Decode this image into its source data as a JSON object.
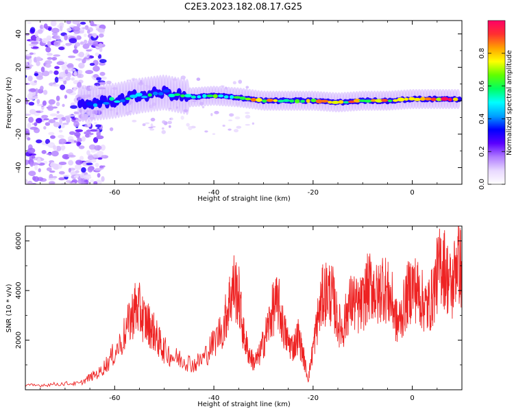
{
  "figure": {
    "title": "C2E3.2023.182.08.17.G25"
  },
  "chart_data": [
    {
      "type": "heatmap",
      "xlabel": "Height of straight line (km)",
      "ylabel": "Frequency (Hz)",
      "xlim": [
        -78,
        10
      ],
      "ylim": [
        -50,
        48
      ],
      "xticks": [
        -60,
        -40,
        -20,
        0
      ],
      "yticks": [
        -40,
        -20,
        0,
        20,
        40
      ],
      "colorbar": {
        "label": "Normalized spectral amplitude",
        "range": [
          0.0,
          1.0
        ],
        "ticks": [
          0.0,
          0.2,
          0.4,
          0.6,
          0.8
        ],
        "colormap": [
          "#ffffff",
          "#e8d8ff",
          "#b07cff",
          "#5a00ff",
          "#0000ff",
          "#00a0ff",
          "#00ffff",
          "#00ff60",
          "#60ff00",
          "#ffff00",
          "#ffa000",
          "#ff3030",
          "#ff0066"
        ]
      },
      "ridge": [
        {
          "x": -66,
          "y": -2,
          "amp": 0.35
        },
        {
          "x": -60,
          "y": 0,
          "amp": 0.5
        },
        {
          "x": -55,
          "y": 3,
          "amp": 0.55
        },
        {
          "x": -50,
          "y": 5,
          "amp": 0.5
        },
        {
          "x": -45,
          "y": 2,
          "amp": 0.6
        },
        {
          "x": -40,
          "y": 3,
          "amp": 0.65
        },
        {
          "x": -35,
          "y": 2,
          "amp": 0.7
        },
        {
          "x": -30,
          "y": 0,
          "amp": 0.8
        },
        {
          "x": -25,
          "y": 0,
          "amp": 0.75
        },
        {
          "x": -20,
          "y": 0,
          "amp": 0.8
        },
        {
          "x": -15,
          "y": -1,
          "amp": 0.75
        },
        {
          "x": -10,
          "y": 0,
          "amp": 0.85
        },
        {
          "x": -5,
          "y": 0,
          "amp": 0.8
        },
        {
          "x": 0,
          "y": 1,
          "amp": 0.75
        },
        {
          "x": 5,
          "y": 1,
          "amp": 0.95
        },
        {
          "x": 9,
          "y": 1,
          "amp": 0.95
        }
      ]
    },
    {
      "type": "line",
      "xlabel": "Height of straight line (km)",
      "ylabel": "SNR (10 * v/v)",
      "xlim": [
        -78,
        10
      ],
      "ylim": [
        0,
        6600
      ],
      "xticks": [
        -60,
        -40,
        -20,
        0
      ],
      "yticks": [
        2000,
        4000,
        6000
      ],
      "color": "#ee2222",
      "series": [
        {
          "x": [
            -78,
            -74,
            -70,
            -67,
            -65,
            -63,
            -61,
            -59,
            -57,
            -56,
            -55,
            -54,
            -53,
            -52,
            -51,
            -50,
            -48,
            -46,
            -44,
            -42,
            -40,
            -38,
            -37,
            -36,
            -35,
            -34,
            -33,
            -32,
            -31,
            -30,
            -29,
            -28,
            -27,
            -26,
            -25,
            -24,
            -23,
            -22,
            -21,
            -20,
            -19,
            -18,
            -17,
            -16,
            -15,
            -14,
            -13,
            -12,
            -11,
            -10,
            -9,
            -8,
            -7,
            -6,
            -5,
            -4,
            -3,
            -2,
            -1,
            0,
            1,
            2,
            3,
            4,
            5,
            6,
            7,
            8,
            9,
            10
          ],
          "y": [
            150,
            200,
            250,
            250,
            500,
            700,
            1200,
            1800,
            2700,
            3300,
            3200,
            2800,
            2600,
            2300,
            1900,
            1600,
            1300,
            1200,
            1000,
            1300,
            1900,
            2600,
            3500,
            4200,
            3800,
            2200,
            1500,
            1100,
            1300,
            1900,
            2600,
            3300,
            3500,
            2500,
            1900,
            1700,
            2200,
            1400,
            400,
            1700,
            2900,
            3800,
            4000,
            3700,
            2700,
            2400,
            3300,
            3600,
            3300,
            3500,
            4100,
            4200,
            3700,
            4300,
            3900,
            3500,
            2600,
            3100,
            3800,
            4200,
            4000,
            3600,
            3300,
            3700,
            4600,
            5200,
            4600,
            4000,
            5400,
            4800
          ]
        }
      ]
    }
  ]
}
